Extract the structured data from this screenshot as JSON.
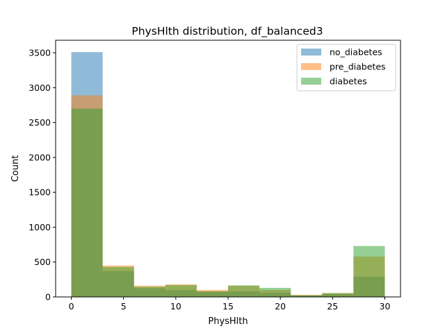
{
  "chart_data": {
    "type": "bar",
    "title": "PhysHlth distribution, df_balanced3",
    "xlabel": "PhysHlth",
    "ylabel": "Count",
    "xlim": [
      -1.5,
      31.5
    ],
    "ylim": [
      0,
      3680
    ],
    "xticks": [
      0,
      5,
      10,
      15,
      20,
      25,
      30
    ],
    "yticks": [
      0,
      500,
      1000,
      1500,
      2000,
      2500,
      3000,
      3500
    ],
    "bin_edges": [
      0,
      3,
      6,
      9,
      12,
      15,
      18,
      21,
      24,
      27,
      30
    ],
    "series": [
      {
        "name": "no_diabetes",
        "color": "#1f77b4",
        "values": [
          3510,
          370,
          125,
          100,
          75,
          80,
          60,
          20,
          40,
          290
        ]
      },
      {
        "name": "pre_diabetes",
        "color": "#ff7f0e",
        "values": [
          2890,
          450,
          160,
          180,
          100,
          160,
          100,
          30,
          55,
          580
        ]
      },
      {
        "name": "diabetes",
        "color": "#2ca02c",
        "values": [
          2700,
          430,
          145,
          170,
          80,
          165,
          130,
          25,
          55,
          730
        ]
      }
    ],
    "alpha": 0.5,
    "legend_position": "top-right",
    "grid": false
  }
}
